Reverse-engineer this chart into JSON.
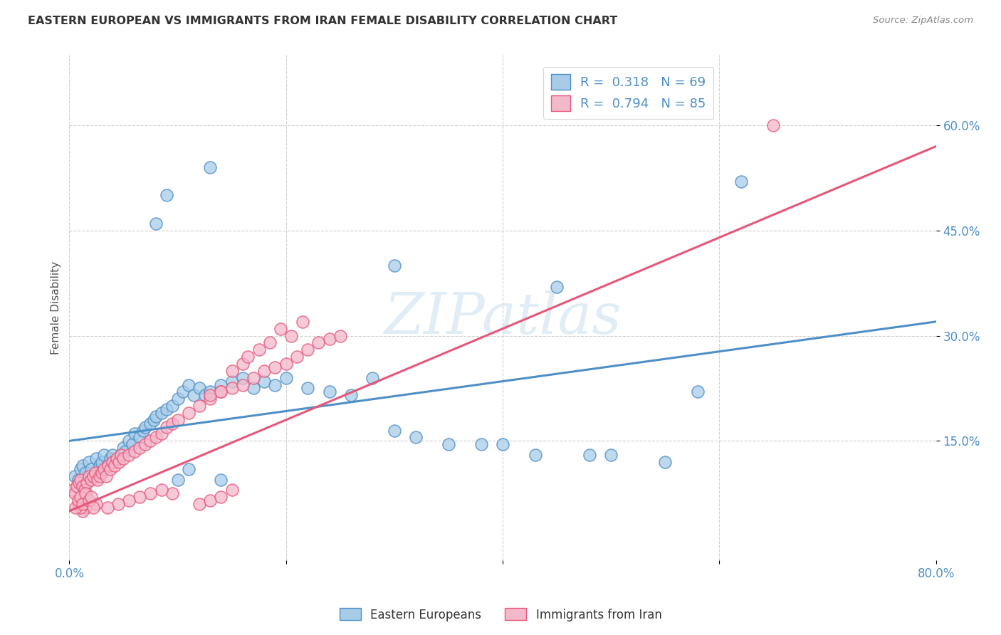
{
  "title": "EASTERN EUROPEAN VS IMMIGRANTS FROM IRAN FEMALE DISABILITY CORRELATION CHART",
  "source": "Source: ZipAtlas.com",
  "ylabel": "Female Disability",
  "watermark": "ZIPatlas",
  "xlim": [
    0.0,
    0.8
  ],
  "ylim": [
    -0.02,
    0.7
  ],
  "yticks": [
    0.15,
    0.3,
    0.45,
    0.6
  ],
  "ytick_labels": [
    "15.0%",
    "30.0%",
    "45.0%",
    "60.0%"
  ],
  "xticks": [
    0.0,
    0.2,
    0.4,
    0.6,
    0.8
  ],
  "xtick_labels": [
    "0.0%",
    "",
    "",
    "",
    "80.0%"
  ],
  "color_blue": "#a8cce8",
  "color_pink": "#f4b8cb",
  "line_blue": "#4e8fc7",
  "line_pink": "#e8567a",
  "R_blue": 0.318,
  "N_blue": 69,
  "R_pink": 0.794,
  "N_pink": 85,
  "blue_x": [
    0.005,
    0.008,
    0.01,
    0.012,
    0.015,
    0.018,
    0.02,
    0.022,
    0.025,
    0.028,
    0.03,
    0.032,
    0.035,
    0.038,
    0.04,
    0.042,
    0.045,
    0.048,
    0.05,
    0.052,
    0.055,
    0.058,
    0.06,
    0.065,
    0.068,
    0.07,
    0.075,
    0.078,
    0.08,
    0.085,
    0.09,
    0.095,
    0.1,
    0.105,
    0.11,
    0.115,
    0.12,
    0.125,
    0.13,
    0.14,
    0.15,
    0.16,
    0.17,
    0.18,
    0.19,
    0.2,
    0.22,
    0.24,
    0.26,
    0.28,
    0.3,
    0.32,
    0.35,
    0.38,
    0.4,
    0.43,
    0.45,
    0.48,
    0.5,
    0.55,
    0.58,
    0.62,
    0.3,
    0.13,
    0.09,
    0.08,
    0.1,
    0.11,
    0.14
  ],
  "blue_y": [
    0.1,
    0.095,
    0.11,
    0.115,
    0.105,
    0.12,
    0.11,
    0.1,
    0.125,
    0.115,
    0.12,
    0.13,
    0.115,
    0.125,
    0.13,
    0.12,
    0.125,
    0.13,
    0.14,
    0.135,
    0.15,
    0.145,
    0.16,
    0.155,
    0.165,
    0.17,
    0.175,
    0.18,
    0.185,
    0.19,
    0.195,
    0.2,
    0.21,
    0.22,
    0.23,
    0.215,
    0.225,
    0.215,
    0.22,
    0.23,
    0.235,
    0.24,
    0.225,
    0.235,
    0.23,
    0.24,
    0.225,
    0.22,
    0.215,
    0.24,
    0.165,
    0.155,
    0.145,
    0.145,
    0.145,
    0.13,
    0.37,
    0.13,
    0.13,
    0.12,
    0.22,
    0.52,
    0.4,
    0.54,
    0.5,
    0.46,
    0.095,
    0.11,
    0.095
  ],
  "pink_x": [
    0.003,
    0.005,
    0.007,
    0.009,
    0.01,
    0.012,
    0.014,
    0.016,
    0.018,
    0.02,
    0.022,
    0.024,
    0.026,
    0.028,
    0.03,
    0.032,
    0.034,
    0.036,
    0.038,
    0.04,
    0.042,
    0.044,
    0.046,
    0.048,
    0.05,
    0.055,
    0.06,
    0.065,
    0.07,
    0.075,
    0.08,
    0.085,
    0.09,
    0.095,
    0.1,
    0.11,
    0.12,
    0.13,
    0.14,
    0.15,
    0.16,
    0.17,
    0.18,
    0.19,
    0.2,
    0.21,
    0.22,
    0.23,
    0.24,
    0.25,
    0.13,
    0.14,
    0.15,
    0.16,
    0.165,
    0.175,
    0.185,
    0.195,
    0.205,
    0.215,
    0.12,
    0.13,
    0.14,
    0.15,
    0.095,
    0.085,
    0.075,
    0.065,
    0.055,
    0.045,
    0.035,
    0.025,
    0.015,
    0.012,
    0.01,
    0.008,
    0.006,
    0.008,
    0.01,
    0.012,
    0.015,
    0.018,
    0.02,
    0.022,
    0.65
  ],
  "pink_y": [
    0.08,
    0.075,
    0.085,
    0.09,
    0.095,
    0.085,
    0.08,
    0.09,
    0.1,
    0.095,
    0.1,
    0.105,
    0.095,
    0.1,
    0.105,
    0.11,
    0.1,
    0.115,
    0.11,
    0.12,
    0.115,
    0.125,
    0.12,
    0.13,
    0.125,
    0.13,
    0.135,
    0.14,
    0.145,
    0.15,
    0.155,
    0.16,
    0.17,
    0.175,
    0.18,
    0.19,
    0.2,
    0.21,
    0.22,
    0.225,
    0.23,
    0.24,
    0.25,
    0.255,
    0.26,
    0.27,
    0.28,
    0.29,
    0.295,
    0.3,
    0.215,
    0.22,
    0.25,
    0.26,
    0.27,
    0.28,
    0.29,
    0.31,
    0.3,
    0.32,
    0.06,
    0.065,
    0.07,
    0.08,
    0.075,
    0.08,
    0.075,
    0.07,
    0.065,
    0.06,
    0.055,
    0.06,
    0.055,
    0.05,
    0.055,
    0.06,
    0.055,
    0.065,
    0.07,
    0.06,
    0.075,
    0.065,
    0.07,
    0.055,
    0.6
  ]
}
